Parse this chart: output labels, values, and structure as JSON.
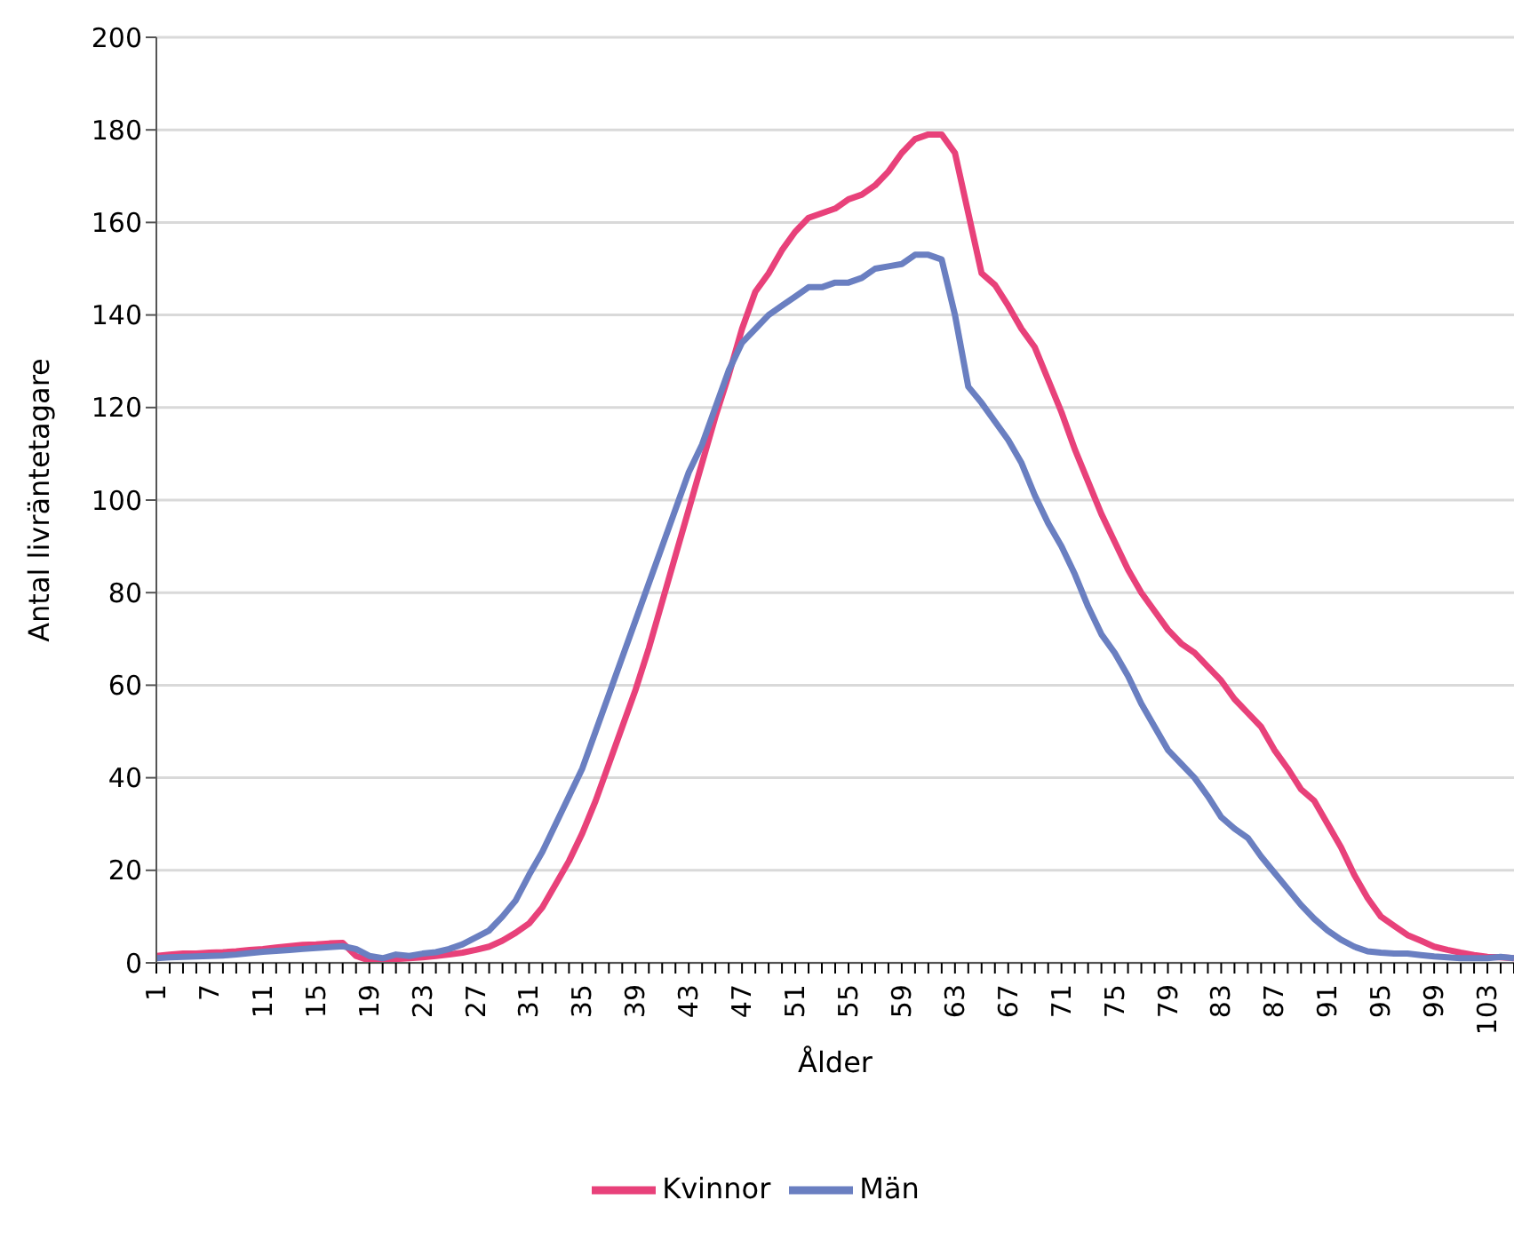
{
  "chart_data": {
    "type": "line",
    "xlabel": "Ålder",
    "ylabel": "Antal livräntetagare",
    "categories": [
      "1",
      null,
      null,
      null,
      "7",
      null,
      null,
      null,
      "11",
      null,
      null,
      null,
      "15",
      null,
      null,
      null,
      "19",
      null,
      null,
      null,
      "23",
      null,
      null,
      null,
      "27",
      null,
      null,
      null,
      "31",
      null,
      null,
      null,
      "35",
      null,
      null,
      null,
      "39",
      null,
      null,
      null,
      "43",
      null,
      null,
      null,
      "47",
      null,
      null,
      null,
      "51",
      null,
      null,
      null,
      "55",
      null,
      null,
      null,
      "59",
      null,
      null,
      null,
      "63",
      null,
      null,
      null,
      "67",
      null,
      null,
      null,
      "71",
      null,
      null,
      null,
      "75",
      null,
      null,
      null,
      "79",
      null,
      null,
      null,
      "83",
      null,
      null,
      null,
      "87",
      null,
      null,
      null,
      "91",
      null,
      null,
      null,
      "95",
      null,
      null,
      null,
      "99",
      null,
      null,
      null,
      "103",
      null,
      null
    ],
    "series": [
      {
        "name": "Kvinnor",
        "color": "#e8417a",
        "values": [
          1.5,
          1.8,
          2,
          2,
          2.2,
          2.3,
          2.5,
          2.8,
          3,
          3.3,
          3.6,
          3.9,
          4,
          4.2,
          4.3,
          1.5,
          0.5,
          0.5,
          0.8,
          1,
          1.2,
          1.5,
          1.8,
          2.2,
          2.8,
          3.5,
          4.8,
          6.5,
          8.5,
          12,
          17,
          22,
          28,
          35,
          43,
          51,
          59,
          68,
          78,
          88,
          98,
          108,
          118,
          127,
          137,
          145,
          149,
          154,
          158,
          161,
          162,
          163,
          165,
          166,
          168,
          171,
          175,
          178,
          179,
          179,
          175,
          162,
          149,
          146.5,
          142,
          137,
          133,
          126,
          119,
          111,
          104,
          97,
          91,
          85,
          80,
          76,
          72,
          69,
          67,
          64,
          61,
          57,
          54,
          51,
          46,
          42,
          37.5,
          35,
          30,
          25,
          19,
          14,
          10,
          8,
          6,
          4.8,
          3.5,
          2.8,
          2.2,
          1.7,
          1.3,
          1.2,
          1
        ]
      },
      {
        "name": "Män",
        "color": "#6a7fc1",
        "values": [
          1,
          1.2,
          1.3,
          1.4,
          1.5,
          1.6,
          1.8,
          2.1,
          2.4,
          2.6,
          2.8,
          3,
          3.2,
          3.4,
          3.6,
          3,
          1.5,
          1,
          1.8,
          1.5,
          2,
          2.3,
          3,
          4,
          5.5,
          7,
          10,
          13.5,
          19,
          24,
          30,
          36,
          42,
          50,
          58,
          66,
          74,
          82,
          90,
          98,
          106,
          112,
          120,
          128,
          134,
          137,
          140,
          142,
          144,
          146,
          146,
          147,
          147,
          148,
          150,
          150.5,
          151,
          153,
          153,
          152,
          140,
          124.5,
          121,
          117,
          113,
          108,
          101,
          95,
          90,
          84,
          77,
          71,
          67,
          62,
          56,
          51,
          46,
          43,
          40,
          36,
          31.5,
          29,
          27,
          23,
          19.5,
          16,
          12.5,
          9.5,
          7,
          5,
          3.5,
          2.5,
          2.2,
          2,
          2,
          1.7,
          1.4,
          1.2,
          1,
          1,
          1,
          1.3,
          1
        ]
      }
    ],
    "ylim": [
      0,
      200
    ],
    "yticks": [
      0,
      20,
      40,
      60,
      80,
      100,
      120,
      140,
      160,
      180,
      200
    ],
    "grid": "y",
    "legend": "bottom",
    "marker": "none",
    "line_style": "solid"
  }
}
